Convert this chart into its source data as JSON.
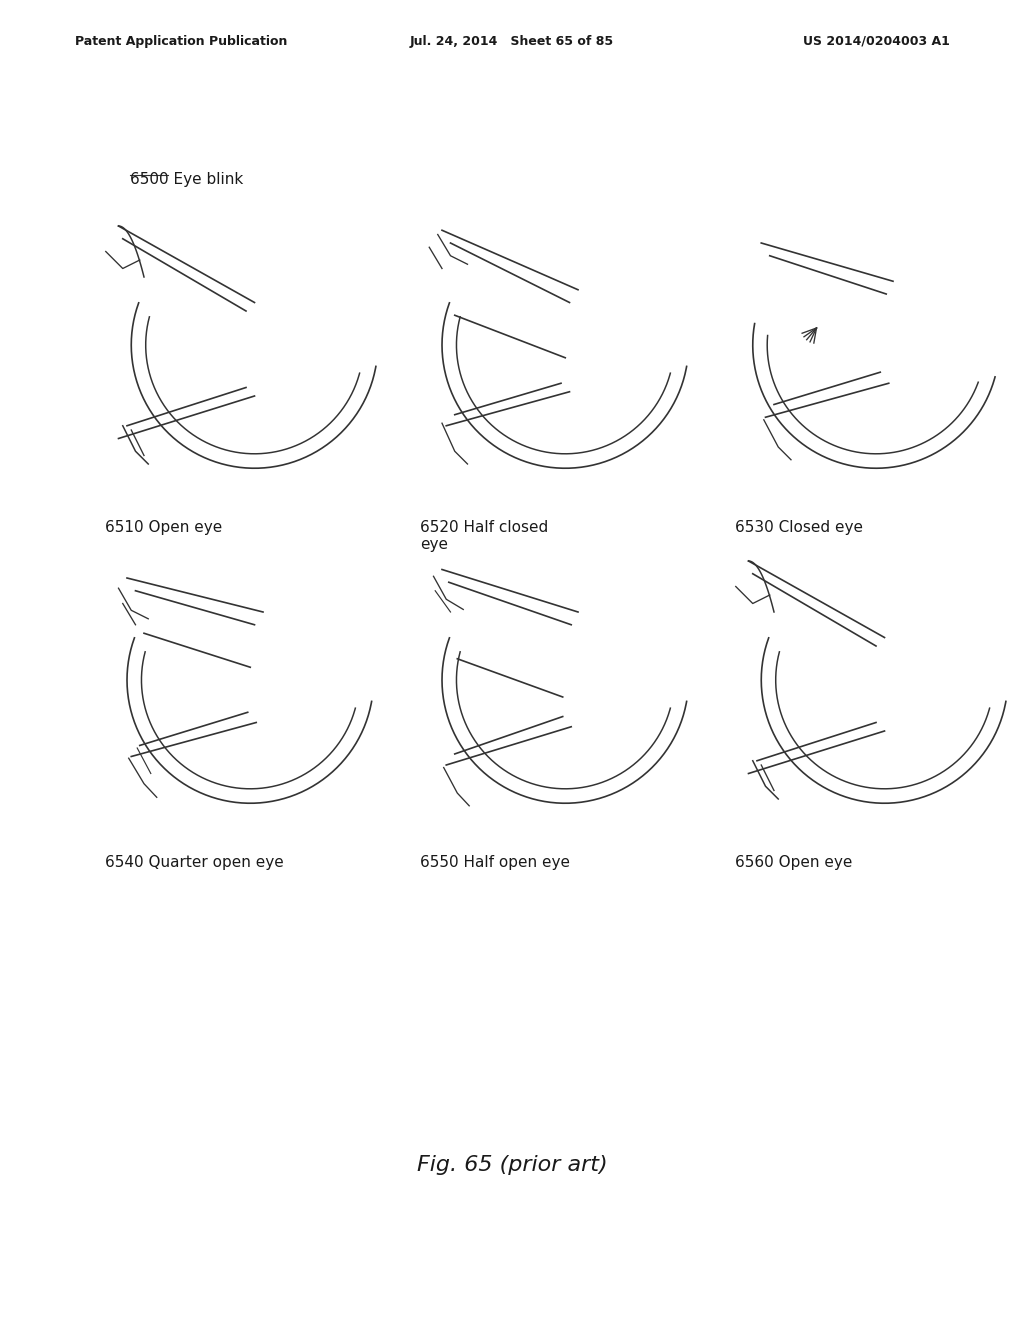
{
  "bg_color": "#ffffff",
  "header_left": "Patent Application Publication",
  "header_mid": "Jul. 24, 2014   Sheet 65 of 85",
  "header_right": "US 2014/0204003 A1",
  "section_label": "6500 Eye blink",
  "labels": [
    [
      "6510 Open eye",
      "6520 Half closed\neye",
      "6530 Closed eye"
    ],
    [
      "6540 Quarter open eye",
      "6550 Half open eye",
      "6560 Open eye"
    ]
  ],
  "fig_caption": "Fig. 65 (prior art)",
  "text_color": "#1a1a1a",
  "line_color": "#333333",
  "line_width": 1.2
}
